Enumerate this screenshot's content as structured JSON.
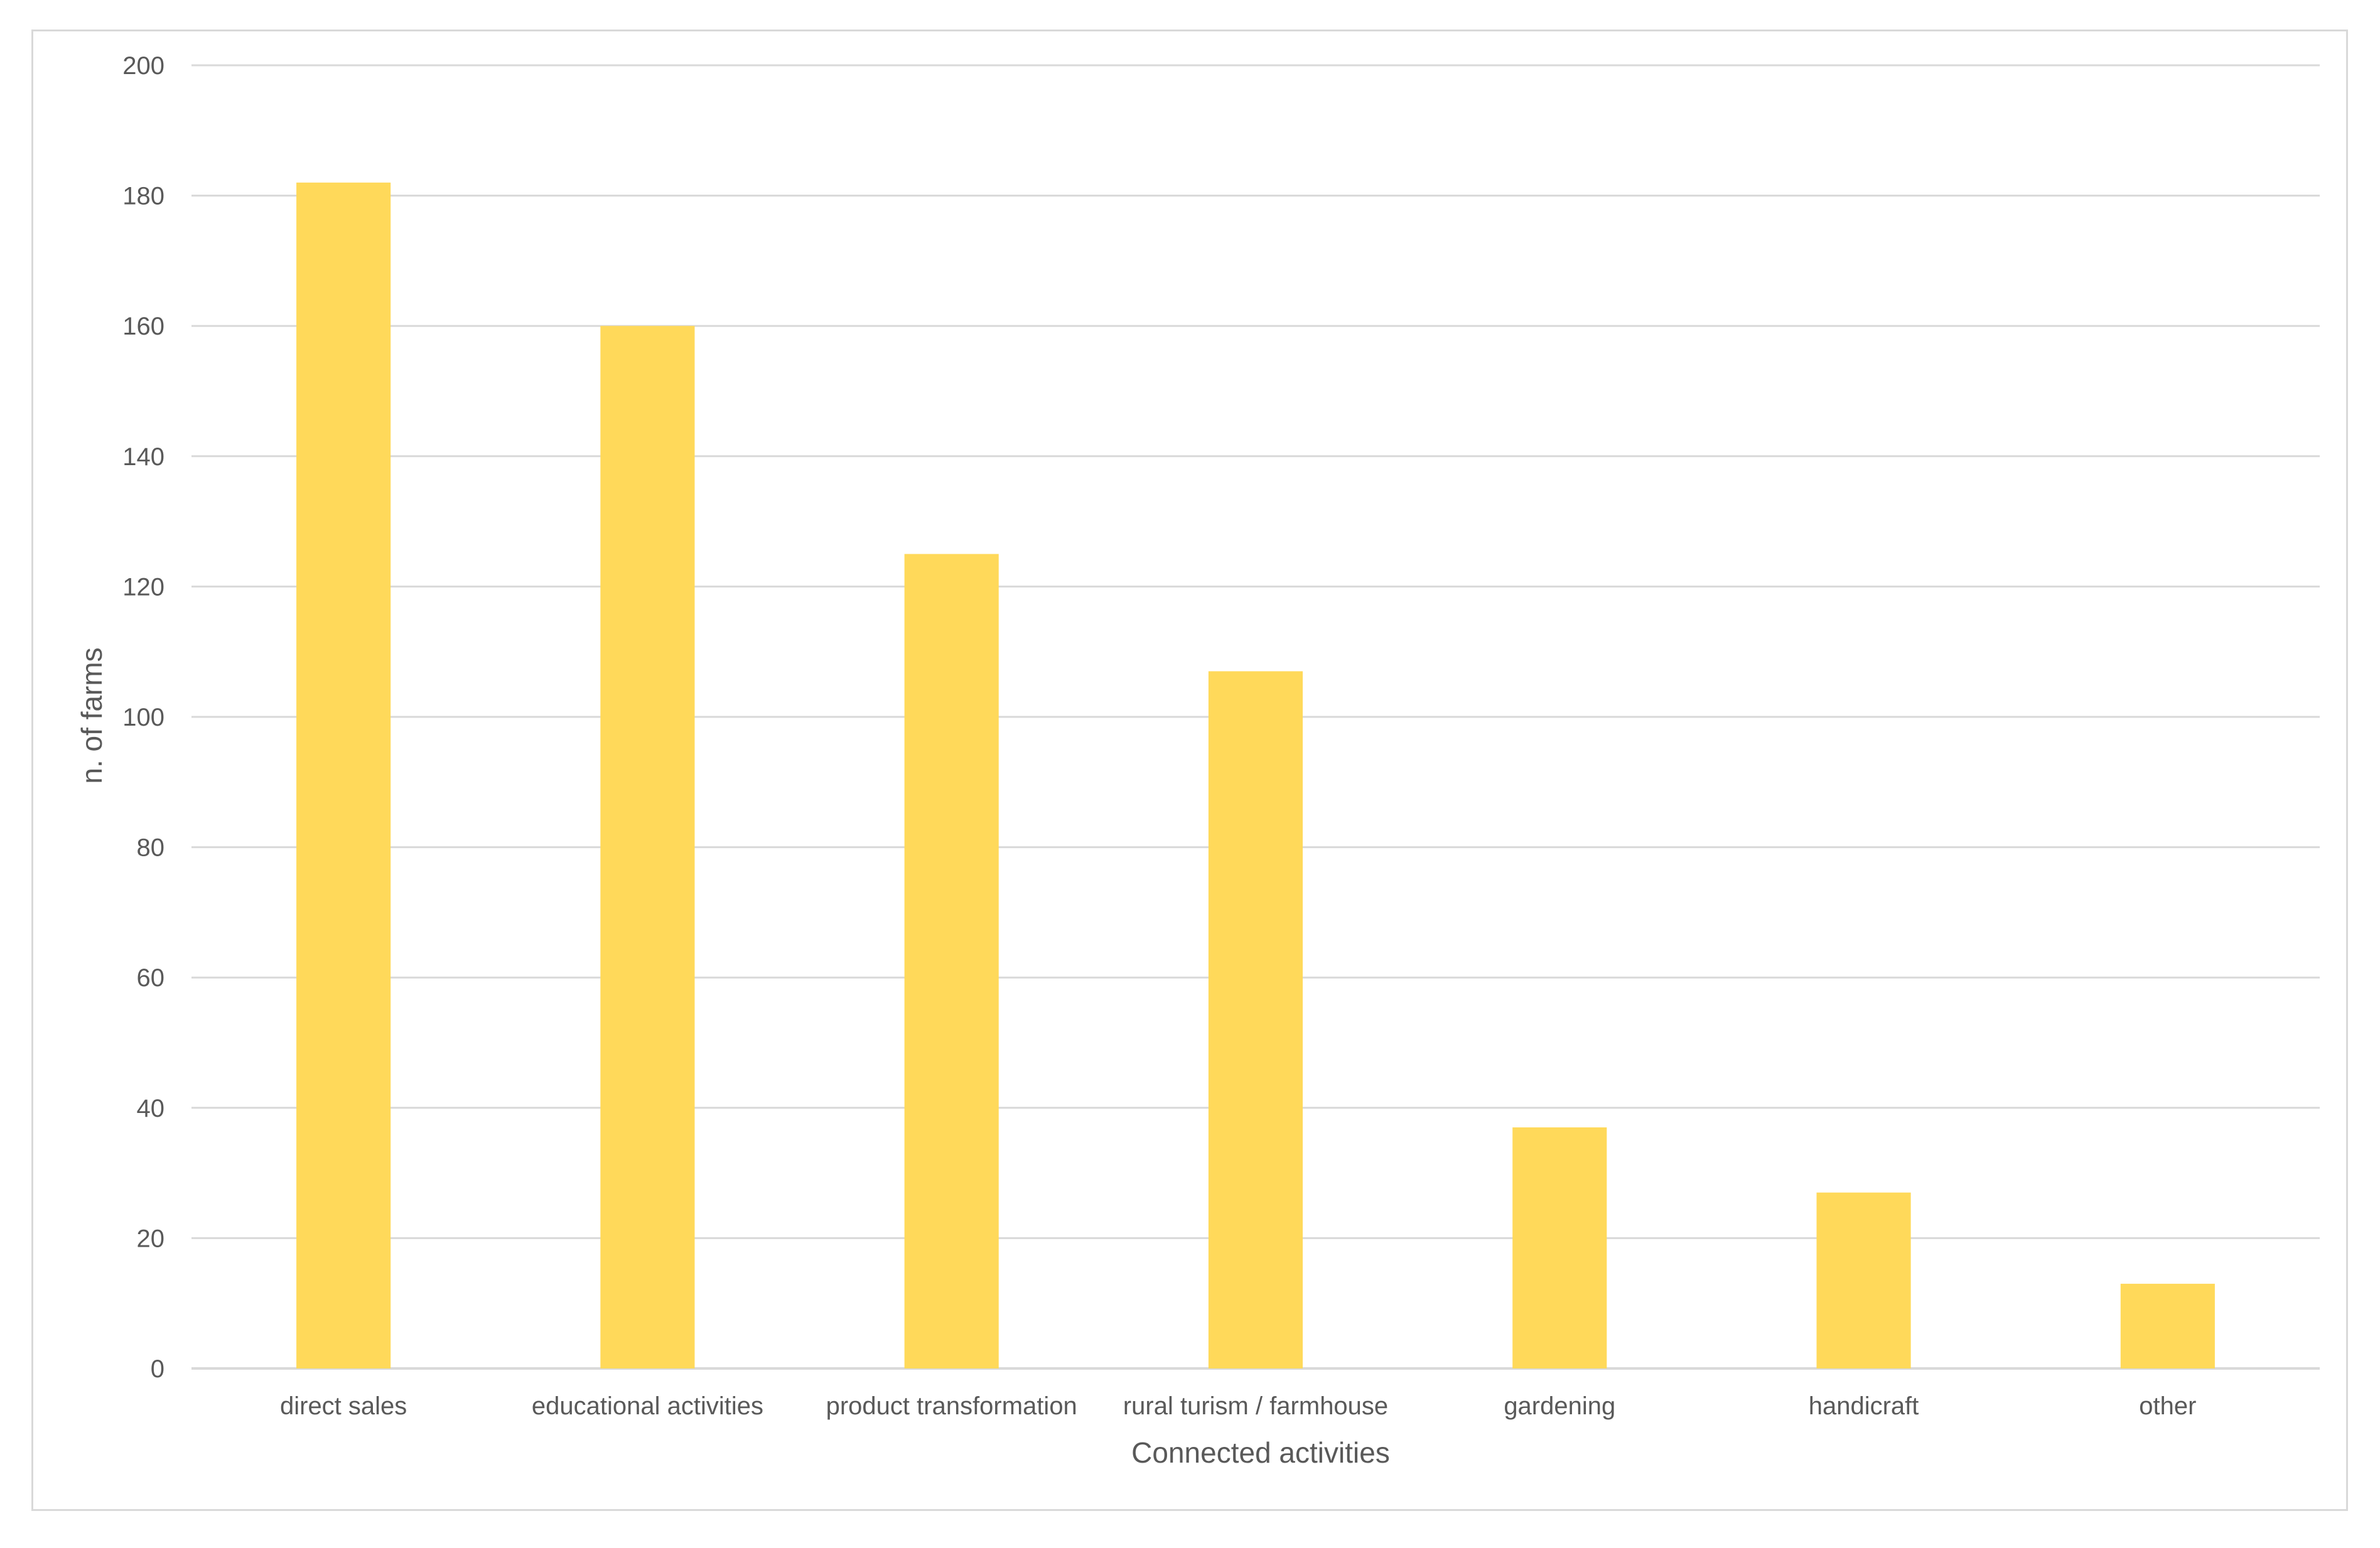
{
  "chart_data": {
    "type": "bar",
    "categories": [
      "direct sales",
      "educational activities",
      "product transformation",
      "rural turism / farmhouse",
      "gardening",
      "handicraft",
      "other"
    ],
    "values": [
      182,
      160,
      125,
      107,
      37,
      27,
      13
    ],
    "xlabel": "Connected activities",
    "ylabel": "n. of farms",
    "ylim": [
      0,
      200
    ],
    "yticks": [
      0,
      20,
      40,
      60,
      80,
      100,
      120,
      140,
      160,
      180,
      200
    ],
    "grid": true,
    "legend": "none",
    "bar_color": "#FFD95A",
    "grid_color": "#D9D9D9",
    "text_color": "#595959"
  }
}
